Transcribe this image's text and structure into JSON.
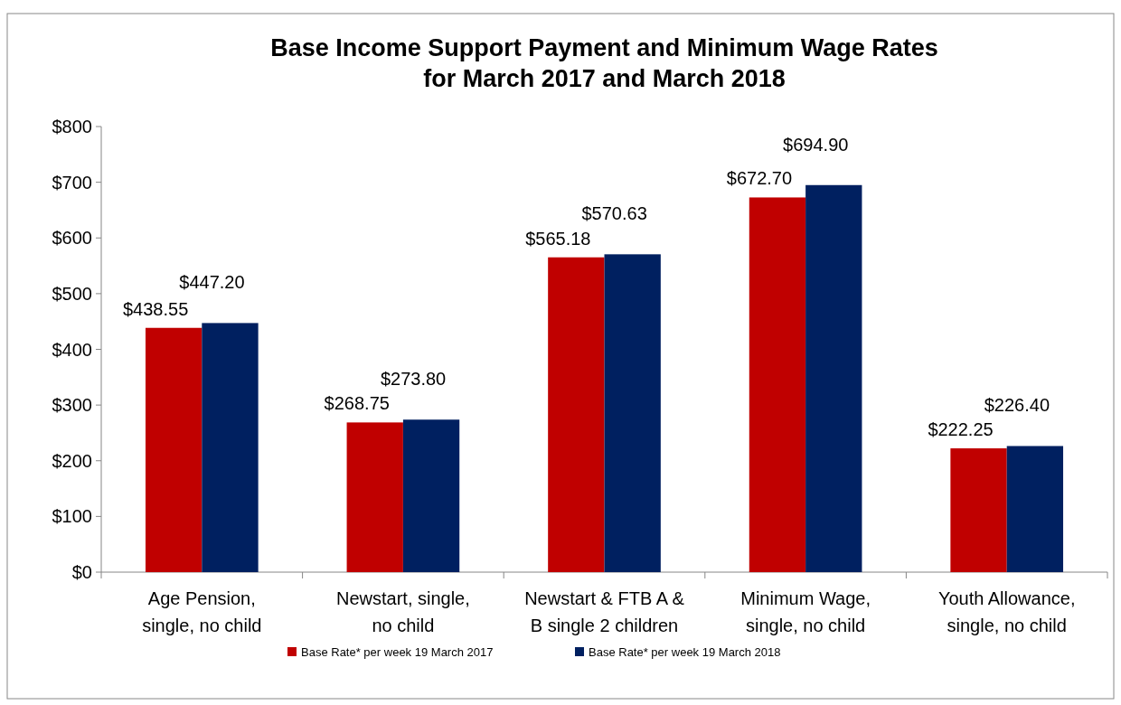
{
  "chart_data": {
    "type": "bar",
    "title": "Base Income Support Payment and Minimum Wage Rates\nfor March 2017 and March 2018",
    "categories": [
      "Age Pension, single, no child",
      "Newstart, single, no child",
      "Newstart & FTB A & B  single 2 children",
      "Minimum Wage, single, no child",
      "Youth Allowance, single, no child"
    ],
    "series": [
      {
        "name": "Base Rate* per week 19 March 2017",
        "color": "#c00000",
        "values": [
          438.55,
          268.75,
          565.18,
          672.7,
          222.25
        ],
        "value_labels": [
          "$438.55",
          "$268.75",
          "$565.18",
          "$672.70",
          "$222.25"
        ]
      },
      {
        "name": "Base Rate* per week 19 March 2018",
        "color": "#002060",
        "values": [
          447.2,
          273.8,
          570.63,
          694.9,
          226.4
        ],
        "value_labels": [
          "$447.20",
          "$273.80",
          "$570.63",
          "$694.90",
          "$226.40"
        ]
      }
    ],
    "ylim": [
      0,
      800
    ],
    "yticks": [
      {
        "value": 0,
        "label": "$0"
      },
      {
        "value": 100,
        "label": "$100"
      },
      {
        "value": 200,
        "label": "$200"
      },
      {
        "value": 300,
        "label": "$300"
      },
      {
        "value": 400,
        "label": "$400"
      },
      {
        "value": 500,
        "label": "$500"
      },
      {
        "value": 600,
        "label": "$600"
      },
      {
        "value": 700,
        "label": "$700"
      },
      {
        "value": 800,
        "label": "$800"
      }
    ],
    "grid": false,
    "legend": "bottom"
  }
}
